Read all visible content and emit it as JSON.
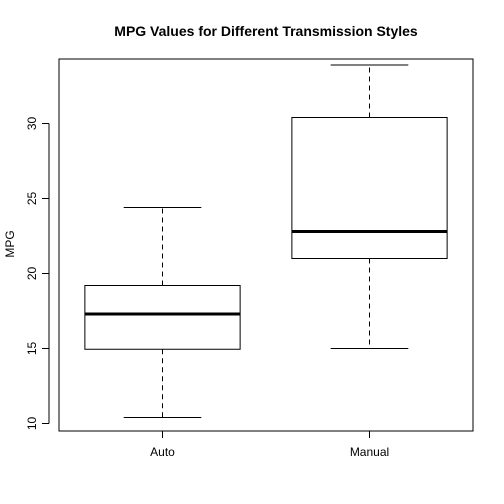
{
  "chart_data": {
    "type": "boxplot",
    "title": "MPG Values for Different Transmission Styles",
    "xlabel": "",
    "ylabel": "MPG",
    "ylim": [
      9.5,
      34.3
    ],
    "yticks": [
      10,
      15,
      20,
      25,
      30
    ],
    "grid": false,
    "legend": "none",
    "categories": [
      "Auto",
      "Manual"
    ],
    "boxes": [
      {
        "category": "Auto",
        "min": 10.4,
        "q1": 14.95,
        "median": 17.3,
        "q3": 19.2,
        "max": 24.4
      },
      {
        "category": "Manual",
        "min": 15.0,
        "q1": 21.0,
        "median": 22.8,
        "q3": 30.4,
        "max": 33.9
      }
    ]
  }
}
